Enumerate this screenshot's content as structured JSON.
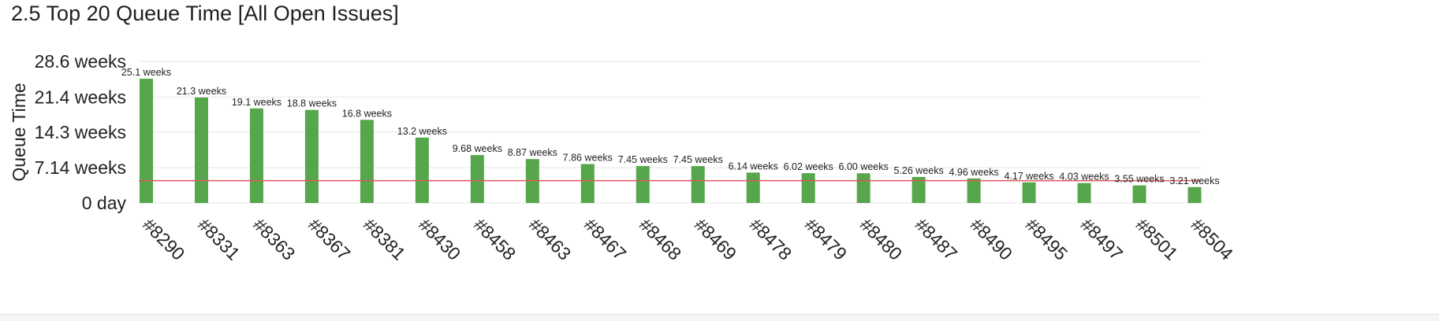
{
  "panel": {
    "title": "2.5 Top 20 Queue Time [All Open Issues]"
  },
  "colors": {
    "bar": "#56a64b",
    "reference_line": "#e0565f",
    "grid": "#e6e6e6"
  },
  "chart_data": {
    "type": "bar",
    "title": "2.5 Top 20 Queue Time [All Open Issues]",
    "ylabel": "Queue Time",
    "xlabel": "",
    "categories": [
      "#8290",
      "#8331",
      "#8363",
      "#8367",
      "#8381",
      "#8430",
      "#8458",
      "#8463",
      "#8467",
      "#8468",
      "#8469",
      "#8478",
      "#8479",
      "#8480",
      "#8487",
      "#8490",
      "#8495",
      "#8497",
      "#8501",
      "#8504"
    ],
    "values": [
      25.1,
      21.3,
      19.1,
      18.8,
      16.8,
      13.2,
      9.68,
      8.87,
      7.86,
      7.45,
      7.45,
      6.14,
      6.02,
      6.0,
      5.26,
      4.96,
      4.17,
      4.03,
      3.55,
      3.21
    ],
    "value_labels": [
      "25.1 weeks",
      "21.3 weeks",
      "19.1 weeks",
      "18.8 weeks",
      "16.8 weeks",
      "13.2 weeks",
      "9.68 weeks",
      "8.87 weeks",
      "7.86 weeks",
      "7.45 weeks",
      "7.45 weeks",
      "6.14 weeks",
      "6.02 weeks",
      "6.00 weeks",
      "5.26 weeks",
      "4.96 weeks",
      "4.17 weeks",
      "4.03 weeks",
      "3.55 weeks",
      "3.21 weeks"
    ],
    "unit": "weeks",
    "ylim": [
      0,
      28.6
    ],
    "yticks": [
      0,
      7.14,
      14.3,
      21.4,
      28.6
    ],
    "ytick_labels": [
      "0 day",
      "7.14 weeks",
      "14.3 weeks",
      "21.4 weeks",
      "28.6 weeks"
    ],
    "reference_line_value": 4.5,
    "grid": true,
    "legend": "none"
  }
}
